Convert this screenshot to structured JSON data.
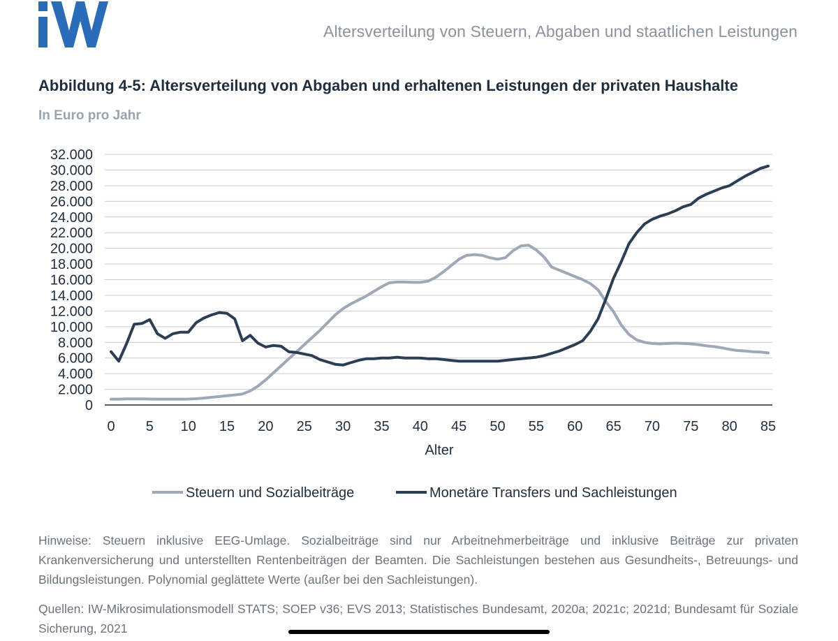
{
  "header": {
    "logo_text": "IW",
    "title": "Altersverteilung von Steuern, Abgaben und staatlichen Leistungen"
  },
  "figure": {
    "title": "Abbildung 4-5: Altersverteilung von Abgaben und erhaltenen Leistungen der privaten Haushalte",
    "subtitle": "In Euro pro Jahr"
  },
  "chart_data": {
    "type": "line",
    "xlabel": "Alter",
    "ylabel": "",
    "xlim": [
      0,
      85
    ],
    "ylim": [
      0,
      32000
    ],
    "xticks": [
      0,
      5,
      10,
      15,
      20,
      25,
      30,
      35,
      40,
      45,
      50,
      55,
      60,
      65,
      70,
      75,
      80,
      85
    ],
    "yticks": [
      0,
      2000,
      4000,
      6000,
      8000,
      10000,
      12000,
      14000,
      16000,
      18000,
      20000,
      22000,
      24000,
      26000,
      28000,
      30000,
      32000
    ],
    "ytick_labels": [
      "0",
      "2.000",
      "4.000",
      "6.000",
      "8.000",
      "10.000",
      "12.000",
      "14.000",
      "16.000",
      "18.000",
      "20.000",
      "22.000",
      "24.000",
      "26.000",
      "28.000",
      "30.000",
      "32.000"
    ],
    "grid": true,
    "legend_position": "bottom",
    "x": [
      0,
      1,
      2,
      3,
      4,
      5,
      6,
      7,
      8,
      9,
      10,
      11,
      12,
      13,
      14,
      15,
      16,
      17,
      18,
      19,
      20,
      21,
      22,
      23,
      24,
      25,
      26,
      27,
      28,
      29,
      30,
      31,
      32,
      33,
      34,
      35,
      36,
      37,
      38,
      39,
      40,
      41,
      42,
      43,
      44,
      45,
      46,
      47,
      48,
      49,
      50,
      51,
      52,
      53,
      54,
      55,
      56,
      57,
      58,
      59,
      60,
      61,
      62,
      63,
      64,
      65,
      66,
      67,
      68,
      69,
      70,
      71,
      72,
      73,
      74,
      75,
      76,
      77,
      78,
      79,
      80,
      81,
      82,
      83,
      84,
      85
    ],
    "series": [
      {
        "name": "Steuern und Sozialbeiträge",
        "color": "#9ea8b6",
        "values": [
          750,
          750,
          780,
          780,
          780,
          760,
          750,
          750,
          750,
          750,
          760,
          800,
          880,
          980,
          1080,
          1180,
          1280,
          1400,
          1800,
          2400,
          3200,
          4100,
          5000,
          5900,
          6800,
          7700,
          8600,
          9500,
          10500,
          11500,
          12300,
          12900,
          13400,
          13900,
          14500,
          15100,
          15600,
          15700,
          15700,
          15650,
          15650,
          15800,
          16300,
          17000,
          17800,
          18600,
          19100,
          19200,
          19100,
          18800,
          18600,
          18800,
          19700,
          20300,
          20400,
          19800,
          18900,
          17600,
          17200,
          16800,
          16400,
          16000,
          15500,
          14700,
          13200,
          11900,
          10200,
          9000,
          8300,
          8000,
          7850,
          7800,
          7850,
          7900,
          7850,
          7800,
          7700,
          7550,
          7450,
          7300,
          7100,
          6950,
          6900,
          6800,
          6750,
          6650
        ]
      },
      {
        "name": "Monetäre Transfers und Sachleistungen",
        "color": "#2c3e54",
        "values": [
          6800,
          5600,
          7800,
          10300,
          10400,
          10900,
          9100,
          8500,
          9100,
          9300,
          9300,
          10500,
          11100,
          11500,
          11800,
          11700,
          11000,
          8200,
          8900,
          7900,
          7400,
          7600,
          7500,
          6800,
          6700,
          6500,
          6300,
          5800,
          5500,
          5200,
          5100,
          5400,
          5700,
          5900,
          5900,
          6000,
          6000,
          6100,
          6000,
          6000,
          6000,
          5900,
          5900,
          5800,
          5700,
          5600,
          5600,
          5600,
          5600,
          5600,
          5600,
          5700,
          5800,
          5900,
          6000,
          6100,
          6300,
          6600,
          6900,
          7300,
          7700,
          8200,
          9400,
          11000,
          13500,
          16200,
          18300,
          20600,
          22000,
          23100,
          23700,
          24100,
          24400,
          24800,
          25300,
          25600,
          26400,
          26900,
          27300,
          27700,
          28000,
          28600,
          29200,
          29700,
          30200,
          30500
        ]
      }
    ]
  },
  "notes": "Hinweise: Steuern inklusive EEG-Umlage. Sozialbeiträge sind nur Arbeitnehmerbeiträge und inklusive Beiträge zur privaten Krankenversicherung und unterstellten Rentenbeiträgen der Beamten. Die Sachleistungen bestehen aus Gesundheits-, Betreuungs- und Bildungsleistungen. Polynomial geglättete Werte (außer bei den Sachleistungen).",
  "sources": "Quellen: IW-Mikrosimulationsmodell STATS; SOEP v36; EVS 2013; Statistisches Bundesamt, 2020a; 2021c; 2021d; Bundesamt für Soziale Sicherung, 2021"
}
